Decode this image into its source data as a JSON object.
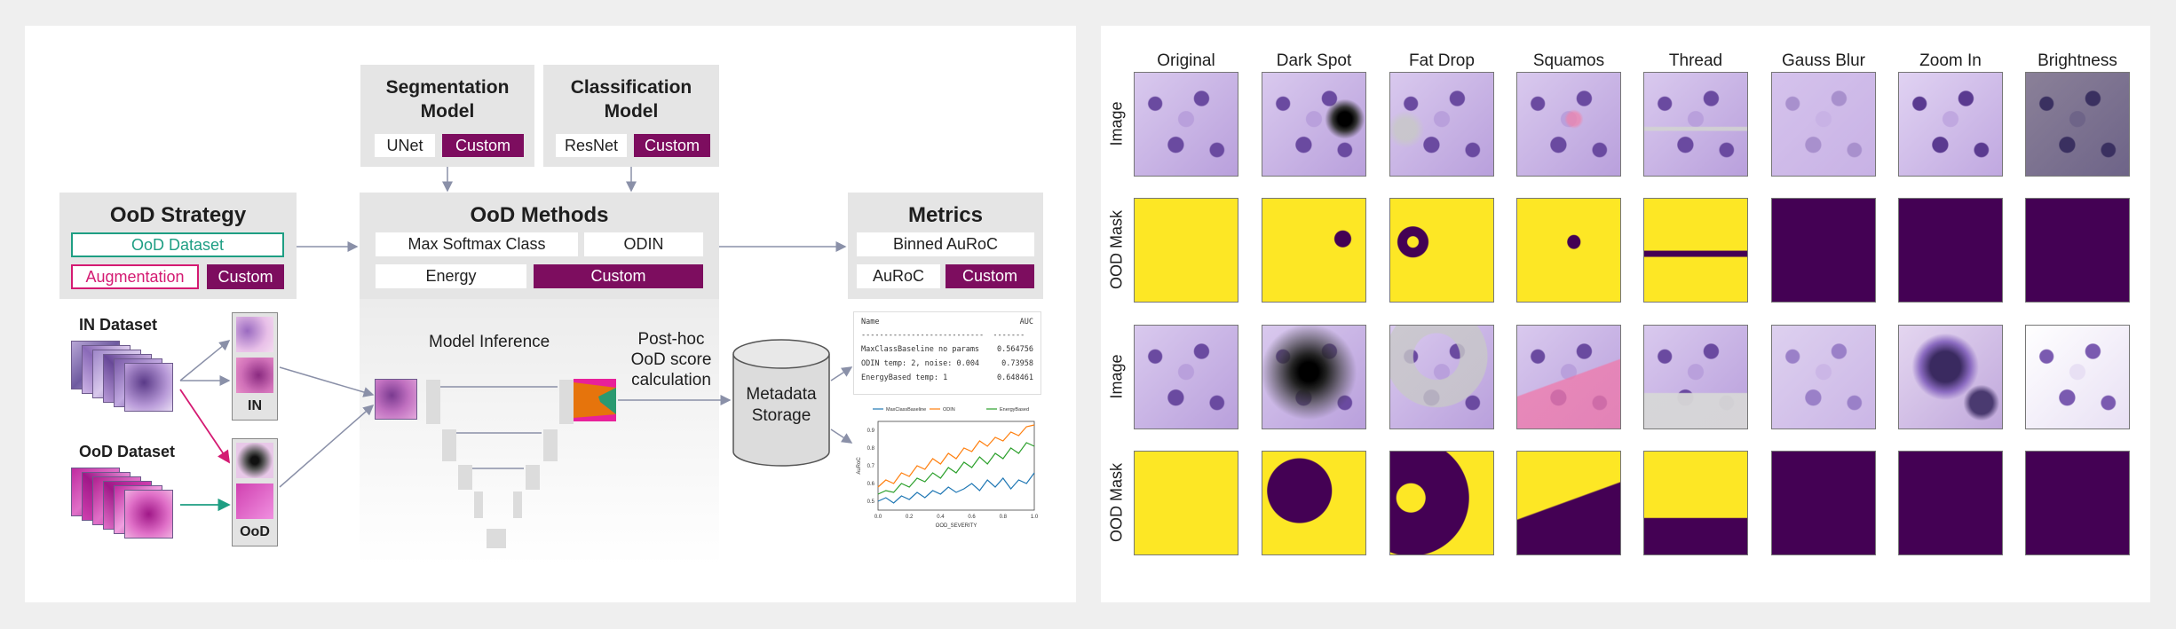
{
  "left_diagram": {
    "segmentation_model": {
      "title": "Segmentation\nModel",
      "opt1": "UNet",
      "opt2": "Custom"
    },
    "classification_model": {
      "title": "Classification\nModel",
      "opt1": "ResNet",
      "opt2": "Custom"
    },
    "ood_strategy": {
      "title": "OoD Strategy",
      "dataset": "OoD Dataset",
      "augmentation": "Augmentation",
      "custom": "Custom"
    },
    "ood_methods": {
      "title": "OoD Methods",
      "m1": "Max Softmax Class",
      "m2": "ODIN",
      "m3": "Energy",
      "m4": "Custom"
    },
    "metrics": {
      "title": "Metrics",
      "m1": "Binned AuRoC",
      "m2": "AuRoC",
      "m3": "Custom"
    },
    "in_dataset": "IN Dataset",
    "ood_dataset": "OoD Dataset",
    "in_tag": "IN",
    "ood_tag": "OoD",
    "model_inference": "Model Inference",
    "posthoc": "Post-hoc\nOoD score\ncalculation",
    "storage": "Metadata\nStorage",
    "results_table": {
      "headers": [
        "Name",
        "AUC"
      ],
      "separator": "---------------------------  -------",
      "rows": [
        {
          "name": "MaxClassBaseline no params",
          "auc": "0.564756"
        },
        {
          "name": "ODIN temp: 2, noise: 0.004",
          "auc": "0.73958"
        },
        {
          "name": "EnergyBased temp: 1",
          "auc": "0.648461"
        }
      ]
    },
    "colors": {
      "purple": "#7d0d5f",
      "teal": "#1e9e83",
      "pink": "#d41a72",
      "arrow": "#8a90a8"
    }
  },
  "chart_data": {
    "type": "line",
    "title": "",
    "xlabel": "OOD_SEVERITY",
    "ylabel": "AuRoC",
    "x": [
      0.0,
      0.05,
      0.1,
      0.15,
      0.2,
      0.25,
      0.3,
      0.35,
      0.4,
      0.45,
      0.5,
      0.55,
      0.6,
      0.65,
      0.7,
      0.75,
      0.8,
      0.85,
      0.9,
      0.95,
      1.0
    ],
    "xticks": [
      "0.0",
      "0.2",
      "0.4",
      "0.6",
      "0.8",
      "1.0"
    ],
    "yticks": [
      "0.5",
      "0.6",
      "0.7",
      "0.8",
      "0.9"
    ],
    "xlim": [
      0,
      1
    ],
    "ylim": [
      0.45,
      0.95
    ],
    "legend": "top",
    "series": [
      {
        "name": "MaxClassBaseline",
        "color": "#1f77b4",
        "values": [
          0.5,
          0.52,
          0.49,
          0.53,
          0.51,
          0.55,
          0.52,
          0.56,
          0.54,
          0.58,
          0.55,
          0.57,
          0.6,
          0.56,
          0.62,
          0.58,
          0.63,
          0.57,
          0.62,
          0.6,
          0.66
        ]
      },
      {
        "name": "ODIN",
        "color": "#ff7f0e",
        "values": [
          0.58,
          0.62,
          0.6,
          0.66,
          0.64,
          0.7,
          0.68,
          0.74,
          0.71,
          0.77,
          0.74,
          0.8,
          0.78,
          0.84,
          0.81,
          0.86,
          0.84,
          0.89,
          0.87,
          0.92,
          0.93
        ]
      },
      {
        "name": "EnergyBased",
        "color": "#2ca02c",
        "values": [
          0.54,
          0.56,
          0.55,
          0.6,
          0.58,
          0.63,
          0.61,
          0.66,
          0.63,
          0.69,
          0.66,
          0.72,
          0.69,
          0.75,
          0.71,
          0.77,
          0.74,
          0.8,
          0.77,
          0.83,
          0.81
        ]
      }
    ]
  },
  "right_grid": {
    "columns": [
      "Original",
      "Dark Spot",
      "Fat Drop",
      "Squamos",
      "Thread",
      "Gauss Blur",
      "Zoom In",
      "Brightness"
    ],
    "row_labels": [
      "Image",
      "OOD Mask",
      "Image",
      "OOD Mask"
    ],
    "colors": {
      "mask_yellow": "#fde725",
      "mask_purple": "#440154"
    }
  }
}
